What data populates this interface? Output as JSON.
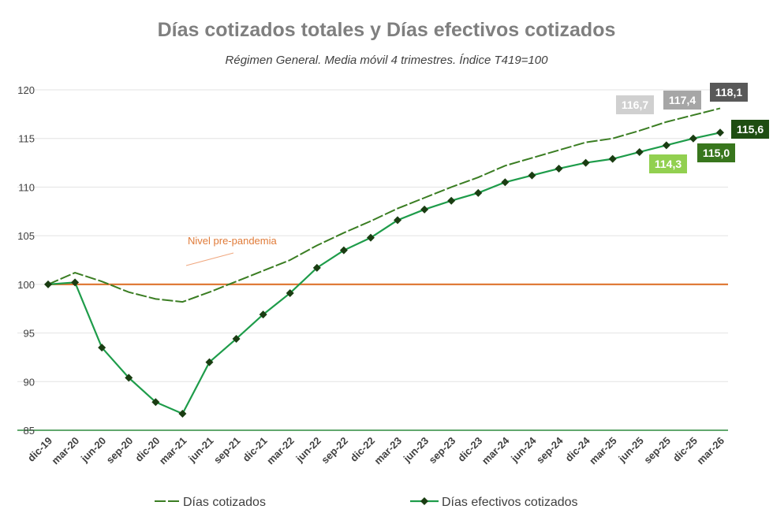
{
  "chart_data": {
    "type": "line",
    "title": "Días cotizados totales y Días efectivos cotizados",
    "subtitle": "Régimen General. Media móvil 4 trimestres. Índice T419=100",
    "ylim": [
      85,
      120
    ],
    "yticks": [
      85,
      90,
      95,
      100,
      105,
      110,
      115,
      120
    ],
    "categories": [
      "dic-19",
      "mar-20",
      "jun-20",
      "sep-20",
      "dic-20",
      "mar-21",
      "jun-21",
      "sep-21",
      "dic-21",
      "mar-22",
      "jun-22",
      "sep-22",
      "dic-22",
      "mar-23",
      "jun-23",
      "sep-23",
      "dic-23",
      "mar-24",
      "jun-24",
      "sep-24",
      "dic-24",
      "mar-25",
      "jun-25",
      "sep-25",
      "dic-25",
      "mar-26"
    ],
    "series": [
      {
        "name": "Días cotizados",
        "color": "#3a7d22",
        "style": "dashed-line",
        "values": [
          100,
          101.2,
          100.3,
          99.2,
          98.5,
          98.2,
          99.2,
          100.3,
          101.4,
          102.5,
          104.0,
          105.3,
          106.5,
          107.8,
          108.9,
          110.0,
          111.0,
          112.2,
          113.0,
          113.8,
          114.6,
          115.0,
          115.8,
          116.7,
          117.4,
          118.1
        ]
      },
      {
        "name": "Días efectivos cotizados",
        "color": "#1e9c4a",
        "style": "line-diamond",
        "values": [
          100,
          100.2,
          93.5,
          90.4,
          87.9,
          86.7,
          92.0,
          94.4,
          96.9,
          99.1,
          101.7,
          103.5,
          104.8,
          106.6,
          107.7,
          108.6,
          109.4,
          110.5,
          111.2,
          111.9,
          112.5,
          112.9,
          113.6,
          114.3,
          115.0,
          115.6
        ]
      }
    ],
    "reference_line": {
      "value": 100,
      "label": "Nivel pre-pandemia",
      "color": "#e07b39"
    },
    "data_labels": [
      {
        "text": "116,7",
        "series": 0,
        "index": 23,
        "bg": "#d0d0d0"
      },
      {
        "text": "117,4",
        "series": 0,
        "index": 24,
        "bg": "#a6a6a6"
      },
      {
        "text": "118,1",
        "series": 0,
        "index": 25,
        "bg": "#595959"
      },
      {
        "text": "114,3",
        "series": 1,
        "index": 23,
        "bg": "#92d050"
      },
      {
        "text": "115,0",
        "series": 1,
        "index": 24,
        "bg": "#38761d"
      },
      {
        "text": "115,6",
        "series": 1,
        "index": 25,
        "bg": "#1e4d12"
      }
    ],
    "grid": true,
    "legend": "bottom"
  }
}
